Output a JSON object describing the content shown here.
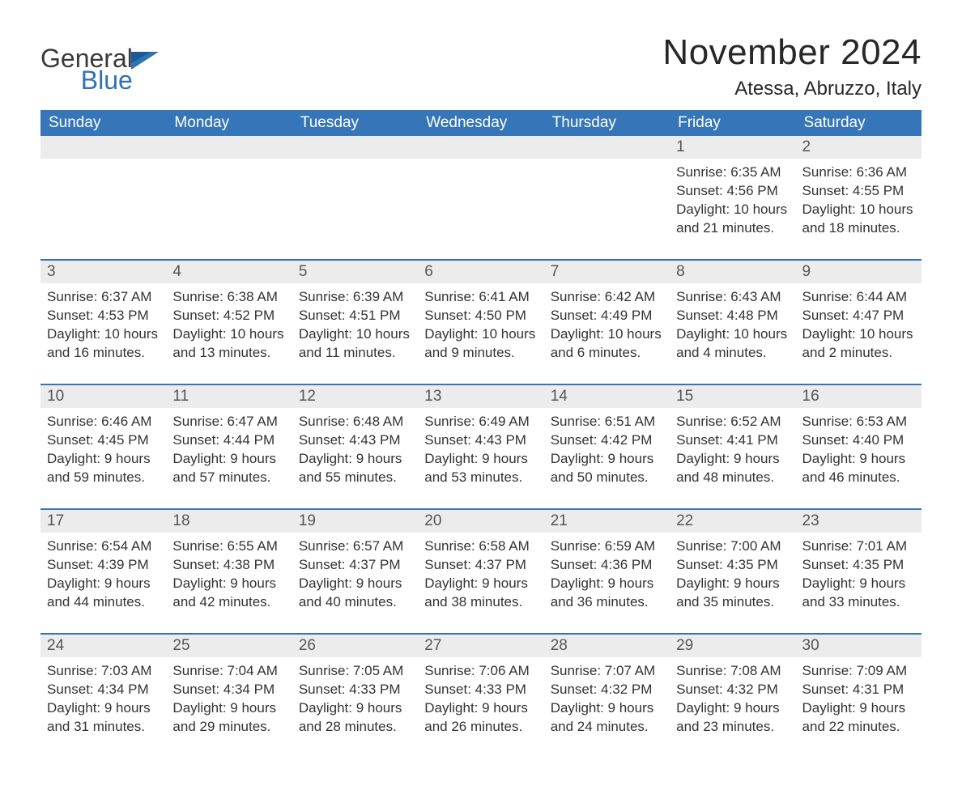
{
  "brand": {
    "word1": "General",
    "word2": "Blue",
    "logo_color": "#2f72b6"
  },
  "header": {
    "month_title": "November 2024",
    "location": "Atessa, Abruzzo, Italy"
  },
  "layout": {
    "header_bg": "#3676b8",
    "header_text": "#ffffff",
    "daynum_bg": "#ececec",
    "border_color": "#3676b8",
    "body_text": "#333333",
    "font_family": "Arial, Helvetica, sans-serif"
  },
  "weekdays": [
    "Sunday",
    "Monday",
    "Tuesday",
    "Wednesday",
    "Thursday",
    "Friday",
    "Saturday"
  ],
  "weeks": [
    {
      "first": true,
      "days": [
        {
          "num": "",
          "details": ""
        },
        {
          "num": "",
          "details": ""
        },
        {
          "num": "",
          "details": ""
        },
        {
          "num": "",
          "details": ""
        },
        {
          "num": "",
          "details": ""
        },
        {
          "num": "1",
          "details": "Sunrise: 6:35 AM\nSunset: 4:56 PM\nDaylight: 10 hours and 21 minutes."
        },
        {
          "num": "2",
          "details": "Sunrise: 6:36 AM\nSunset: 4:55 PM\nDaylight: 10 hours and 18 minutes."
        }
      ]
    },
    {
      "days": [
        {
          "num": "3",
          "details": "Sunrise: 6:37 AM\nSunset: 4:53 PM\nDaylight: 10 hours and 16 minutes."
        },
        {
          "num": "4",
          "details": "Sunrise: 6:38 AM\nSunset: 4:52 PM\nDaylight: 10 hours and 13 minutes."
        },
        {
          "num": "5",
          "details": "Sunrise: 6:39 AM\nSunset: 4:51 PM\nDaylight: 10 hours and 11 minutes."
        },
        {
          "num": "6",
          "details": "Sunrise: 6:41 AM\nSunset: 4:50 PM\nDaylight: 10 hours and 9 minutes."
        },
        {
          "num": "7",
          "details": "Sunrise: 6:42 AM\nSunset: 4:49 PM\nDaylight: 10 hours and 6 minutes."
        },
        {
          "num": "8",
          "details": "Sunrise: 6:43 AM\nSunset: 4:48 PM\nDaylight: 10 hours and 4 minutes."
        },
        {
          "num": "9",
          "details": "Sunrise: 6:44 AM\nSunset: 4:47 PM\nDaylight: 10 hours and 2 minutes."
        }
      ]
    },
    {
      "days": [
        {
          "num": "10",
          "details": "Sunrise: 6:46 AM\nSunset: 4:45 PM\nDaylight: 9 hours and 59 minutes."
        },
        {
          "num": "11",
          "details": "Sunrise: 6:47 AM\nSunset: 4:44 PM\nDaylight: 9 hours and 57 minutes."
        },
        {
          "num": "12",
          "details": "Sunrise: 6:48 AM\nSunset: 4:43 PM\nDaylight: 9 hours and 55 minutes."
        },
        {
          "num": "13",
          "details": "Sunrise: 6:49 AM\nSunset: 4:43 PM\nDaylight: 9 hours and 53 minutes."
        },
        {
          "num": "14",
          "details": "Sunrise: 6:51 AM\nSunset: 4:42 PM\nDaylight: 9 hours and 50 minutes."
        },
        {
          "num": "15",
          "details": "Sunrise: 6:52 AM\nSunset: 4:41 PM\nDaylight: 9 hours and 48 minutes."
        },
        {
          "num": "16",
          "details": "Sunrise: 6:53 AM\nSunset: 4:40 PM\nDaylight: 9 hours and 46 minutes."
        }
      ]
    },
    {
      "days": [
        {
          "num": "17",
          "details": "Sunrise: 6:54 AM\nSunset: 4:39 PM\nDaylight: 9 hours and 44 minutes."
        },
        {
          "num": "18",
          "details": "Sunrise: 6:55 AM\nSunset: 4:38 PM\nDaylight: 9 hours and 42 minutes."
        },
        {
          "num": "19",
          "details": "Sunrise: 6:57 AM\nSunset: 4:37 PM\nDaylight: 9 hours and 40 minutes."
        },
        {
          "num": "20",
          "details": "Sunrise: 6:58 AM\nSunset: 4:37 PM\nDaylight: 9 hours and 38 minutes."
        },
        {
          "num": "21",
          "details": "Sunrise: 6:59 AM\nSunset: 4:36 PM\nDaylight: 9 hours and 36 minutes."
        },
        {
          "num": "22",
          "details": "Sunrise: 7:00 AM\nSunset: 4:35 PM\nDaylight: 9 hours and 35 minutes."
        },
        {
          "num": "23",
          "details": "Sunrise: 7:01 AM\nSunset: 4:35 PM\nDaylight: 9 hours and 33 minutes."
        }
      ]
    },
    {
      "days": [
        {
          "num": "24",
          "details": "Sunrise: 7:03 AM\nSunset: 4:34 PM\nDaylight: 9 hours and 31 minutes."
        },
        {
          "num": "25",
          "details": "Sunrise: 7:04 AM\nSunset: 4:34 PM\nDaylight: 9 hours and 29 minutes."
        },
        {
          "num": "26",
          "details": "Sunrise: 7:05 AM\nSunset: 4:33 PM\nDaylight: 9 hours and 28 minutes."
        },
        {
          "num": "27",
          "details": "Sunrise: 7:06 AM\nSunset: 4:33 PM\nDaylight: 9 hours and 26 minutes."
        },
        {
          "num": "28",
          "details": "Sunrise: 7:07 AM\nSunset: 4:32 PM\nDaylight: 9 hours and 24 minutes."
        },
        {
          "num": "29",
          "details": "Sunrise: 7:08 AM\nSunset: 4:32 PM\nDaylight: 9 hours and 23 minutes."
        },
        {
          "num": "30",
          "details": "Sunrise: 7:09 AM\nSunset: 4:31 PM\nDaylight: 9 hours and 22 minutes."
        }
      ]
    }
  ]
}
